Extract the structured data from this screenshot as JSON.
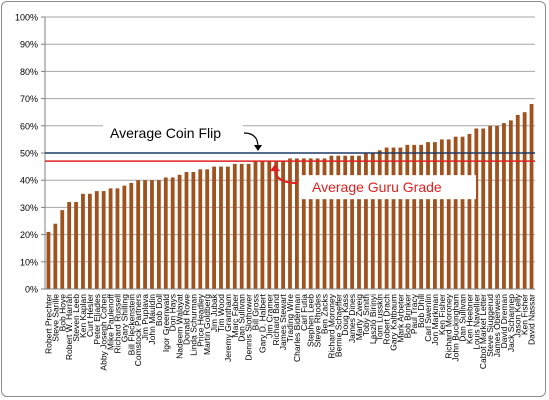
{
  "chart_data": {
    "type": "bar",
    "title": "",
    "xlabel": "",
    "ylabel": "",
    "ylim": [
      0,
      100
    ],
    "yticks": [
      "0%",
      "10%",
      "20%",
      "30%",
      "40%",
      "50%",
      "60%",
      "70%",
      "80%",
      "90%",
      "100%"
    ],
    "bar_color": "#a0521e",
    "grid": "horizontal",
    "x_tick_labels": [
      "Robert Prechter",
      "Steve Sarille",
      "Bob Hoye",
      "Robert W. Harrah",
      "Steven Leeb",
      "Ken Kaplan",
      "Curt Hesler",
      "Peter Eliades",
      "Abby Joseph Cohen",
      "Mike Paulenoff",
      "Richard Russell",
      "Gary Shilling",
      "Bill Fleckenstein",
      "Comstock Partners",
      "Jim Puplava",
      "John Mauldin",
      "Bob Doll",
      "Igor Greenwald",
      "Don Hays",
      "Nadeem Walayat",
      "Donald Rowe",
      "Linda Schurman",
      "Price Headley",
      "Martin Goldberg",
      "Jim Jubak",
      "Tim Wood",
      "Jeremy Grantham",
      "Marc Faber",
      "Dan Sullivan",
      "Dennis Slothower",
      "Bill Gross",
      "Gary D. Halbert",
      "Jim Cramer",
      "Richard Band",
      "James Stewart",
      "Trading Wire",
      "Charles Biderman",
      "Carl Futia",
      "Stephen Leeb",
      "Steve Rhodes",
      "Ben Zacks",
      "Richard Moroney",
      "Bernie Schaeffer",
      "Doug Kass",
      "James Dines",
      "Marty Zweig",
      "Toby Smith",
      "Laszlo Birinyi",
      "Tom Lusskin",
      "Robert Drach",
      "Gary Kaltbaum",
      "Mark Arbeter",
      "Bob Brinker",
      "Paul Tracy",
      "Bob Dhill",
      "Carl Swenlin",
      "Jon Markman",
      "Ken Fisher",
      "Richard Moroney",
      "John Buckingham",
      "Dan Sullivan",
      "Ken Heebner",
      "Louis Navellier",
      "Cabot Market Letter",
      "Steve Sjuggerud",
      "James Oberweis",
      "David Dreman",
      "Jack Schannep",
      "Jason Kelly",
      "Ken Fisher",
      "David Nassar"
    ],
    "values": [
      21,
      24,
      29,
      32,
      32,
      35,
      35,
      36,
      36,
      37,
      37,
      38,
      39,
      40,
      40,
      40,
      40,
      41,
      41,
      42,
      43,
      43,
      44,
      44,
      45,
      45,
      45,
      46,
      46,
      46,
      47,
      47,
      47,
      47,
      47,
      48,
      48,
      48,
      48,
      48,
      48,
      49,
      49,
      49,
      49,
      49,
      50,
      50,
      51,
      52,
      52,
      52,
      53,
      53,
      53,
      54,
      54,
      55,
      55,
      56,
      56,
      57,
      59,
      59,
      60,
      60,
      61,
      62,
      64,
      65,
      68
    ],
    "reference_lines": [
      {
        "name": "Average Coin Flip",
        "value": 50,
        "color": "#1f3864"
      },
      {
        "name": "Average Guru Grade",
        "value": 47,
        "color": "#e02020"
      }
    ]
  }
}
